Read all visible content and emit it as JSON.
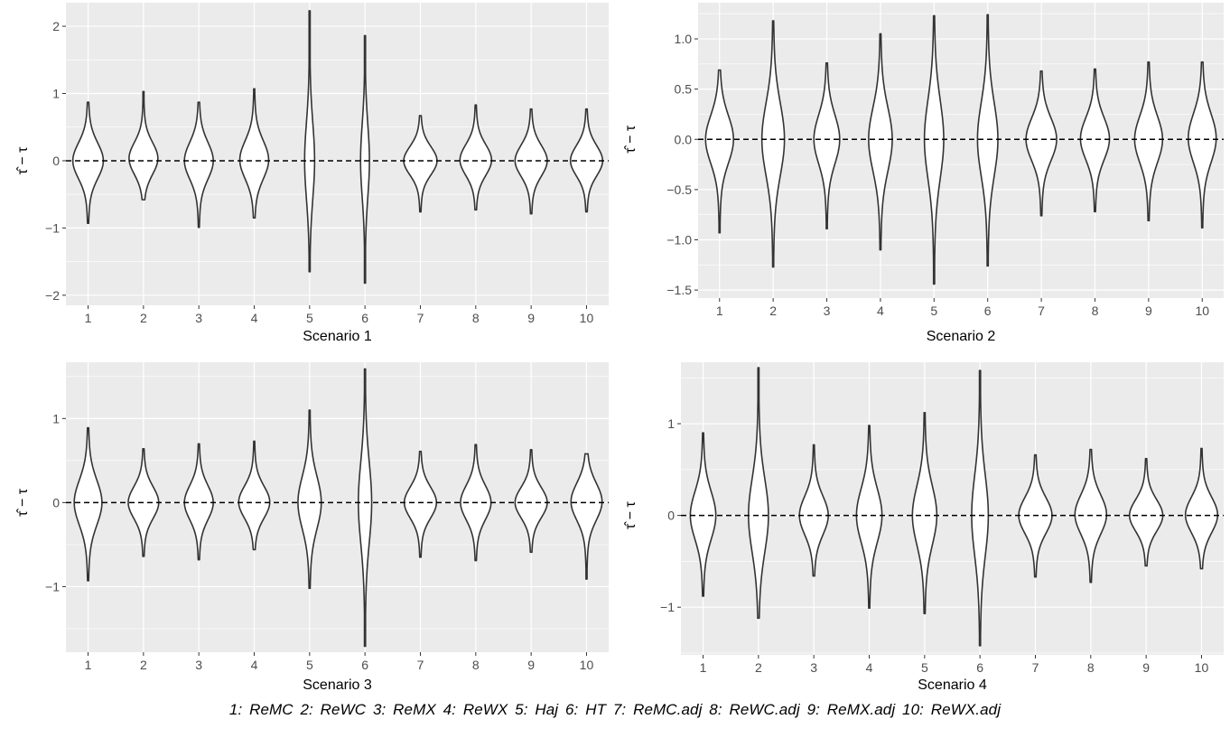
{
  "caption": "1: ReMC 2: ReWC 3: ReMX 4: ReWX 5: Haj 6: HT 7: ReMC.adj 8: ReWC.adj 9: ReMX.adj 10: ReWX.adj",
  "colors": {
    "panel_bg": "#ebebeb",
    "grid": "#ffffff",
    "violin_fill": "#ffffff",
    "violin_line": "#333333",
    "ref_line": "#000000",
    "tick_text": "#4d4d4d"
  },
  "chart_data": [
    {
      "type": "violin",
      "title": "",
      "xlabel": "Scenario 1",
      "ylabel": "τ̂ − τ",
      "categories": [
        "1",
        "2",
        "3",
        "4",
        "5",
        "6",
        "7",
        "8",
        "9",
        "10"
      ],
      "ylim": [
        -2.15,
        2.35
      ],
      "yticks": [
        -2,
        -1,
        0,
        1,
        2
      ],
      "ytick_labels": [
        "−2",
        "−1",
        "0",
        "1",
        "2"
      ],
      "reference_line_y": 0,
      "violins": [
        {
          "min": -0.93,
          "max": 0.87,
          "width": 0.55,
          "skew": 0
        },
        {
          "min": -0.58,
          "max": 1.03,
          "width": 0.52,
          "skew": 0.15
        },
        {
          "min": -0.99,
          "max": 0.87,
          "width": 0.52,
          "skew": 0
        },
        {
          "min": -0.85,
          "max": 1.07,
          "width": 0.52,
          "skew": 0.05
        },
        {
          "min": -1.65,
          "max": 2.23,
          "width": 0.18,
          "skew": 0
        },
        {
          "min": -1.82,
          "max": 1.86,
          "width": 0.16,
          "skew": 0
        },
        {
          "min": -0.76,
          "max": 0.67,
          "width": 0.6,
          "skew": 0
        },
        {
          "min": -0.73,
          "max": 0.83,
          "width": 0.57,
          "skew": 0.05
        },
        {
          "min": -0.79,
          "max": 0.77,
          "width": 0.58,
          "skew": 0
        },
        {
          "min": -0.76,
          "max": 0.77,
          "width": 0.58,
          "skew": 0
        }
      ]
    },
    {
      "type": "violin",
      "title": "",
      "xlabel": "Scenario 2",
      "ylabel": "τ̂ − τ",
      "categories": [
        "1",
        "2",
        "3",
        "4",
        "5",
        "6",
        "7",
        "8",
        "9",
        "10"
      ],
      "ylim": [
        -1.58,
        1.36
      ],
      "yticks": [
        -1.5,
        -1.0,
        -0.5,
        0.0,
        0.5,
        1.0
      ],
      "ytick_labels": [
        "−1.5",
        "−1.0",
        "−0.5",
        "0.0",
        "0.5",
        "1.0"
      ],
      "reference_line_y": 0,
      "violins": [
        {
          "min": -0.93,
          "max": 0.69,
          "width": 0.52,
          "skew": 0
        },
        {
          "min": -1.27,
          "max": 1.18,
          "width": 0.42,
          "skew": 0
        },
        {
          "min": -0.89,
          "max": 0.76,
          "width": 0.48,
          "skew": 0
        },
        {
          "min": -1.1,
          "max": 1.05,
          "width": 0.44,
          "skew": 0
        },
        {
          "min": -1.44,
          "max": 1.23,
          "width": 0.36,
          "skew": 0
        },
        {
          "min": -1.26,
          "max": 1.24,
          "width": 0.38,
          "skew": 0
        },
        {
          "min": -0.76,
          "max": 0.68,
          "width": 0.57,
          "skew": 0
        },
        {
          "min": -0.72,
          "max": 0.7,
          "width": 0.54,
          "skew": 0.03
        },
        {
          "min": -0.81,
          "max": 0.77,
          "width": 0.52,
          "skew": 0
        },
        {
          "min": -0.88,
          "max": 0.77,
          "width": 0.52,
          "skew": 0.05
        }
      ]
    },
    {
      "type": "violin",
      "title": "",
      "xlabel": "Scenario 3",
      "ylabel": "τ̂ − τ",
      "categories": [
        "1",
        "2",
        "3",
        "4",
        "5",
        "6",
        "7",
        "8",
        "9",
        "10"
      ],
      "ylim": [
        -1.78,
        1.67
      ],
      "yticks": [
        -1,
        0,
        1
      ],
      "ytick_labels": [
        "−1",
        "0",
        "1"
      ],
      "reference_line_y": 0,
      "violins": [
        {
          "min": -0.93,
          "max": 0.89,
          "width": 0.5,
          "skew": 0
        },
        {
          "min": -0.64,
          "max": 0.64,
          "width": 0.55,
          "skew": 0
        },
        {
          "min": -0.68,
          "max": 0.7,
          "width": 0.52,
          "skew": 0
        },
        {
          "min": -0.56,
          "max": 0.73,
          "width": 0.56,
          "skew": 0.03
        },
        {
          "min": -1.02,
          "max": 1.1,
          "width": 0.42,
          "skew": 0
        },
        {
          "min": -1.71,
          "max": 1.59,
          "width": 0.24,
          "skew": 0
        },
        {
          "min": -0.65,
          "max": 0.61,
          "width": 0.58,
          "skew": 0
        },
        {
          "min": -0.69,
          "max": 0.69,
          "width": 0.55,
          "skew": 0
        },
        {
          "min": -0.59,
          "max": 0.63,
          "width": 0.58,
          "skew": 0
        },
        {
          "min": -0.91,
          "max": 0.58,
          "width": 0.56,
          "skew": 0.05
        }
      ]
    },
    {
      "type": "violin",
      "title": "",
      "xlabel": "Scenario 4",
      "ylabel": "τ̂ − τ",
      "categories": [
        "1",
        "2",
        "3",
        "4",
        "5",
        "6",
        "7",
        "8",
        "9",
        "10"
      ],
      "ylim": [
        -1.52,
        1.67
      ],
      "yticks": [
        -1,
        0,
        1
      ],
      "ytick_labels": [
        "−1",
        "0",
        "1"
      ],
      "reference_line_y": 0,
      "violins": [
        {
          "min": -0.88,
          "max": 0.9,
          "width": 0.46,
          "skew": 0
        },
        {
          "min": -1.12,
          "max": 1.61,
          "width": 0.36,
          "skew": 0
        },
        {
          "min": -0.66,
          "max": 0.77,
          "width": 0.52,
          "skew": 0
        },
        {
          "min": -1.01,
          "max": 0.98,
          "width": 0.46,
          "skew": 0
        },
        {
          "min": -1.07,
          "max": 1.12,
          "width": 0.44,
          "skew": 0
        },
        {
          "min": -1.42,
          "max": 1.58,
          "width": 0.3,
          "skew": 0
        },
        {
          "min": -0.67,
          "max": 0.66,
          "width": 0.6,
          "skew": 0
        },
        {
          "min": -0.73,
          "max": 0.72,
          "width": 0.57,
          "skew": 0.05
        },
        {
          "min": -0.55,
          "max": 0.62,
          "width": 0.6,
          "skew": 0
        },
        {
          "min": -0.58,
          "max": 0.73,
          "width": 0.58,
          "skew": 0.03
        }
      ]
    }
  ]
}
